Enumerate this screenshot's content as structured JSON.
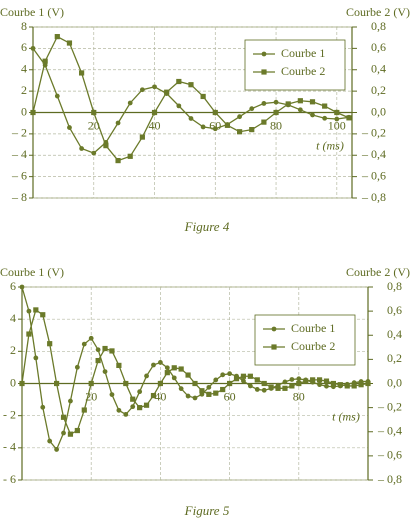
{
  "chart_data": [
    {
      "type": "line",
      "caption": "Figure 4",
      "ylabel": "Courbe 1 (V)",
      "y2label": "Courbe 2 (V)",
      "xlabel": "t (ms)",
      "x": [
        0,
        4,
        8,
        12,
        16,
        20,
        24,
        28,
        32,
        36,
        40,
        44,
        48,
        52,
        56,
        60,
        64,
        68,
        72,
        76,
        80,
        84,
        88,
        92,
        96,
        100,
        104
      ],
      "series": [
        {
          "name": "Courbe 1",
          "color": "#6b7a2a",
          "marker": "circle",
          "axis": "y",
          "values": [
            6,
            4.43,
            1.54,
            -1.41,
            -3.37,
            -3.8,
            -2.8,
            -0.98,
            0.89,
            2.13,
            2.4,
            1.77,
            0.62,
            -0.56,
            -1.35,
            -1.52,
            -1.12,
            -0.39,
            0.36,
            0.85,
            0.96,
            0.71,
            0.25,
            -0.23,
            -0.54,
            -0.61,
            -0.45
          ]
        },
        {
          "name": "Courbe 2",
          "color": "#6b7a2a",
          "marker": "square",
          "axis": "y2",
          "values": [
            0,
            0.48,
            0.71,
            0.65,
            0.37,
            0,
            -0.31,
            -0.45,
            -0.41,
            -0.23,
            0,
            0.19,
            0.29,
            0.26,
            0.15,
            0,
            -0.12,
            -0.18,
            -0.16,
            -0.09,
            0,
            0.08,
            0.11,
            0.1,
            0.06,
            0,
            -0.05
          ]
        }
      ],
      "xlim": [
        0,
        105
      ],
      "xticks": [
        20,
        40,
        60,
        80,
        100
      ],
      "ylim": [
        -8,
        8
      ],
      "yticks": [
        8,
        6,
        4,
        2,
        0,
        {
          "value": -2,
          "label": "– 2"
        },
        {
          "value": -4,
          "label": "– 4"
        },
        {
          "value": -6,
          "label": "– 6"
        },
        {
          "value": -8,
          "label": "– 8"
        }
      ],
      "y2lim": [
        -0.8,
        0.8
      ],
      "y2ticks": [
        {
          "value": 0.8,
          "label": "0,8"
        },
        {
          "value": 0.6,
          "label": "0,6"
        },
        {
          "value": 0.4,
          "label": "0,4"
        },
        {
          "value": 0.2,
          "label": "0,2"
        },
        {
          "value": 0,
          "label": "0,0"
        },
        {
          "value": -0.2,
          "label": "– 0,2"
        },
        {
          "value": -0.4,
          "label": "– 0,4"
        },
        {
          "value": -0.6,
          "label": "– 0,6"
        },
        {
          "value": -0.8,
          "label": "– 0,8"
        }
      ],
      "grid": true,
      "legend": "upper right"
    },
    {
      "type": "line",
      "caption": "Figure 5",
      "ylabel": "Courbe 1 (V)",
      "y2label": "Courbe 2 (V)",
      "xlabel": "t (ms)",
      "x": [
        0,
        2,
        4,
        6,
        8,
        10,
        12,
        14,
        16,
        18,
        20,
        22,
        24,
        26,
        28,
        30,
        32,
        34,
        36,
        38,
        40,
        42,
        44,
        46,
        48,
        50,
        52,
        54,
        56,
        58,
        60,
        62,
        64,
        66,
        68,
        70,
        72,
        74,
        76,
        78,
        80,
        82,
        84,
        86,
        88,
        90,
        92,
        94,
        96,
        98,
        100
      ],
      "series": [
        {
          "name": "Courbe 1",
          "color": "#6b7a2a",
          "marker": "circle",
          "axis": "y",
          "values": [
            6,
            4.5,
            1.59,
            -1.48,
            -3.58,
            -4.1,
            -3.08,
            -1.09,
            1.01,
            2.45,
            2.81,
            2.1,
            0.74,
            -0.69,
            -1.67,
            -1.92,
            -1.44,
            -0.51,
            0.47,
            1.15,
            1.31,
            0.98,
            0.35,
            -0.32,
            -0.78,
            -0.9,
            -0.67,
            -0.24,
            0.22,
            0.54,
            0.61,
            0.46,
            0.16,
            -0.15,
            -0.37,
            -0.42,
            -0.31,
            -0.11,
            0.1,
            0.25,
            0.29,
            0.22,
            0.08,
            -0.07,
            -0.17,
            -0.2,
            -0.15,
            -0.05,
            0.05,
            0.12,
            0.13
          ]
        },
        {
          "name": "Courbe 2",
          "color": "#6b7a2a",
          "marker": "square",
          "axis": "y2",
          "values": [
            0,
            0.41,
            0.61,
            0.57,
            0.33,
            0,
            -0.28,
            -0.42,
            -0.39,
            -0.22,
            0,
            0.19,
            0.29,
            0.27,
            0.15,
            0,
            -0.13,
            -0.2,
            -0.18,
            -0.1,
            0,
            0.09,
            0.13,
            0.12,
            0.07,
            0,
            -0.06,
            -0.09,
            -0.08,
            -0.05,
            0,
            0.04,
            0.06,
            0.06,
            0.03,
            0,
            -0.03,
            -0.04,
            -0.04,
            -0.02,
            0,
            0.02,
            0.03,
            0.03,
            0.02,
            0,
            -0.01,
            -0.02,
            -0.02,
            -0.01,
            0
          ]
        }
      ],
      "xlim": [
        0,
        100
      ],
      "xticks": [
        20,
        40,
        60,
        80
      ],
      "ylim": [
        -6,
        6
      ],
      "yticks": [
        6,
        4,
        2,
        0,
        {
          "value": -2,
          "label": "- 2"
        },
        {
          "value": -4,
          "label": "- 4"
        },
        {
          "value": -6,
          "label": "- 6"
        }
      ],
      "y2lim": [
        -0.8,
        0.8
      ],
      "y2ticks": [
        {
          "value": 0.8,
          "label": "0,8"
        },
        {
          "value": 0.6,
          "label": "0,6"
        },
        {
          "value": 0.4,
          "label": "0,4"
        },
        {
          "value": 0.2,
          "label": "0,2"
        },
        {
          "value": 0,
          "label": "0,0"
        },
        {
          "value": -0.2,
          "label": "– 0,2"
        },
        {
          "value": -0.4,
          "label": "– 0,4"
        },
        {
          "value": -0.6,
          "label": "– 0,6"
        },
        {
          "value": -0.8,
          "label": "– 0,8"
        }
      ],
      "grid": true,
      "legend": "upper right"
    }
  ]
}
